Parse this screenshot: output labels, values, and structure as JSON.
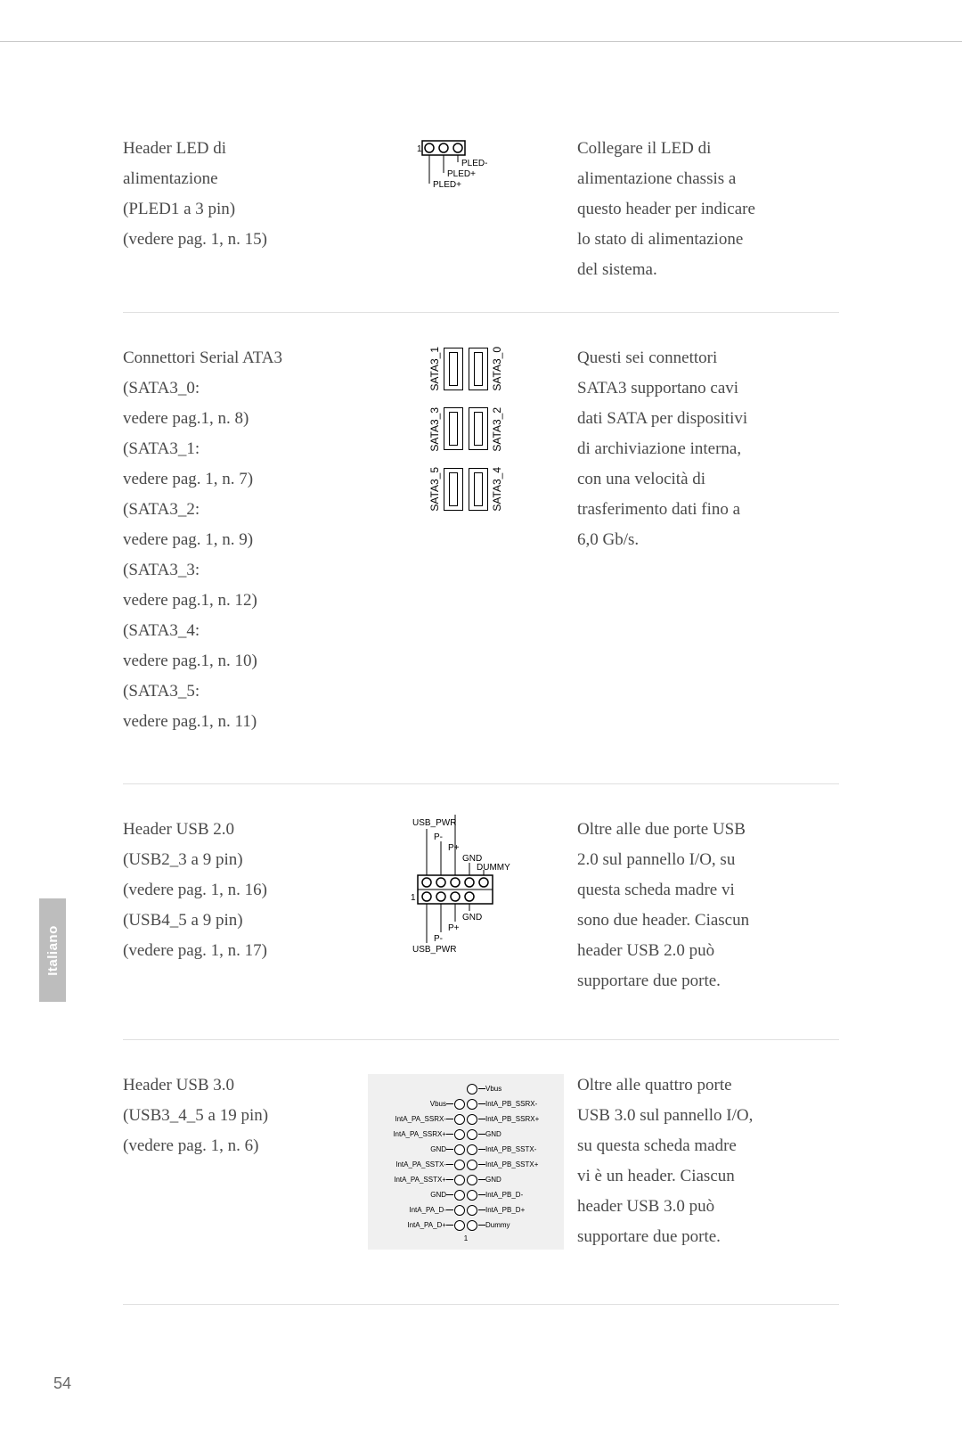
{
  "page_number": "54",
  "side_tab": "Italiano",
  "sections": {
    "pled": {
      "left_lines": [
        "Header LED di",
        "alimentazione",
        "(PLED1 a 3 pin)",
        "(vedere pag. 1, n. 15)"
      ],
      "right_lines": [
        "Collegare il LED di",
        "alimentazione chassis a",
        "questo header per indicare",
        "lo stato di alimentazione",
        "del sistema."
      ],
      "diagram": {
        "pin1_label": "1",
        "labels": [
          "PLED-",
          "PLED+",
          "PLED+"
        ]
      }
    },
    "sata": {
      "left_lines": [
        "Connettori Serial ATA3",
        "(SATA3_0:",
        "vedere pag.1, n. 8)",
        "(SATA3_1:",
        "vedere pag. 1, n. 7)",
        "(SATA3_2:",
        "vedere pag. 1, n. 9)",
        "(SATA3_3:",
        "vedere pag.1, n. 12)",
        "(SATA3_4:",
        "vedere pag.1, n. 10)",
        "(SATA3_5:",
        "vedere pag.1, n. 11)"
      ],
      "right_lines": [
        "Questi sei connettori",
        "SATA3 supportano cavi",
        "dati SATA per dispositivi",
        "di archiviazione interna,",
        "con una velocità di",
        "trasferimento dati fino a",
        "6,0 Gb/s."
      ],
      "rows": [
        {
          "left": "SATA3_1",
          "right": "SATA3_0"
        },
        {
          "left": "SATA3_3",
          "right": "SATA3_2"
        },
        {
          "left": "SATA3_5",
          "right": "SATA3_4"
        }
      ]
    },
    "usb2": {
      "left_lines": [
        "Header USB 2.0",
        "(USB2_3 a 9 pin)",
        "(vedere pag. 1, n. 16)",
        "(USB4_5 a 9 pin)",
        "(vedere pag. 1, n. 17)"
      ],
      "right_lines": [
        "Oltre alle due porte USB",
        "2.0 sul pannello I/O, su",
        "questa scheda madre vi",
        "sono due header. Ciascun",
        "header USB 2.0 può",
        "supportare due porte."
      ],
      "diagram": {
        "top_labels": [
          "USB_PWR",
          "P-",
          "P+",
          "GND",
          "DUMMY"
        ],
        "bottom_labels": [
          "USB_PWR",
          "P-",
          "P+",
          "GND"
        ],
        "pin1_label": "1"
      }
    },
    "usb3": {
      "left_lines": [
        "Header USB 3.0",
        "(USB3_4_5 a 19 pin)",
        "(vedere pag. 1, n. 6)"
      ],
      "right_lines": [
        "Oltre alle quattro porte",
        "USB 3.0 sul pannello I/O,",
        "su questa scheda madre",
        "vi è un header. Ciascun",
        "header USB 3.0 può",
        "supportare due porte."
      ],
      "pin1_label": "1",
      "rows": [
        {
          "l": "",
          "r": "Vbus",
          "left_pin": false
        },
        {
          "l": "Vbus",
          "r": "IntA_PB_SSRX-",
          "left_pin": true
        },
        {
          "l": "IntA_PA_SSRX-",
          "r": "IntA_PB_SSRX+",
          "left_pin": true
        },
        {
          "l": "IntA_PA_SSRX+",
          "r": "GND",
          "left_pin": true
        },
        {
          "l": "GND",
          "r": "IntA_PB_SSTX-",
          "left_pin": true
        },
        {
          "l": "IntA_PA_SSTX-",
          "r": "IntA_PB_SSTX+",
          "left_pin": true
        },
        {
          "l": "IntA_PA_SSTX+",
          "r": "GND",
          "left_pin": true
        },
        {
          "l": "GND",
          "r": "IntA_PB_D-",
          "left_pin": true
        },
        {
          "l": "IntA_PA_D-",
          "r": "IntA_PB_D+",
          "left_pin": true
        },
        {
          "l": "IntA_PA_D+",
          "r": "Dummy",
          "left_pin": true
        }
      ]
    }
  }
}
